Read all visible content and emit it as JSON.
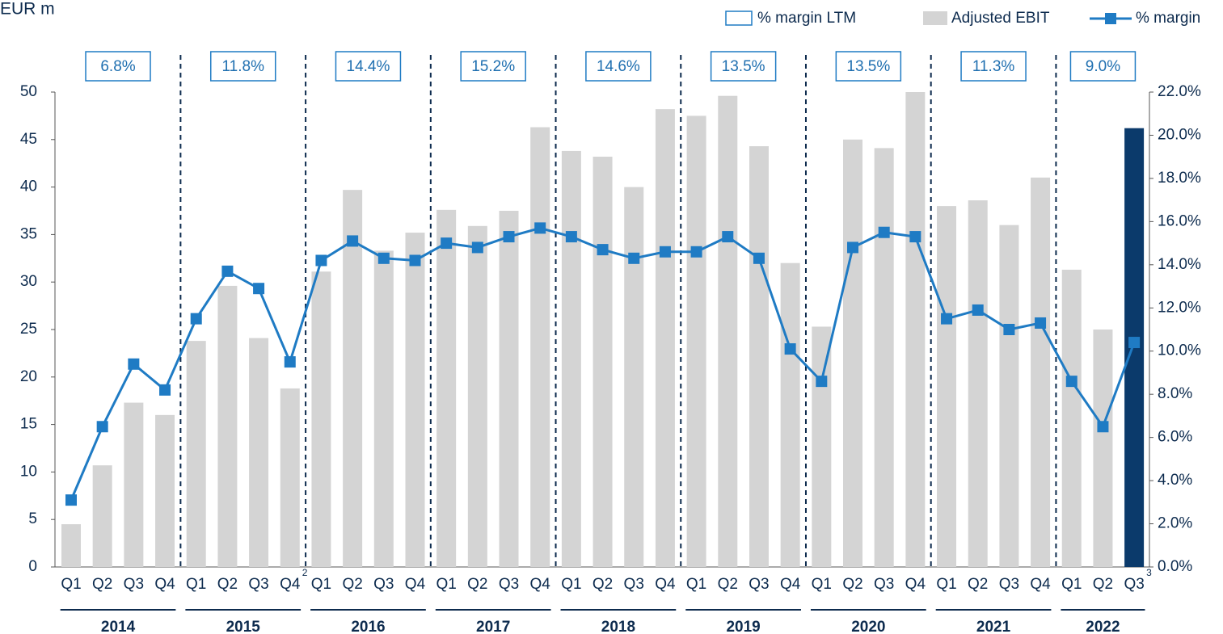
{
  "chart_data": {
    "type": "bar_line",
    "title": "EUR m",
    "categories": [
      "Q1",
      "Q2",
      "Q3",
      "Q4",
      "Q1",
      "Q2",
      "Q3",
      "Q4",
      "Q1",
      "Q2",
      "Q3",
      "Q4",
      "Q1",
      "Q2",
      "Q3",
      "Q4",
      "Q1",
      "Q2",
      "Q3",
      "Q4",
      "Q1",
      "Q2",
      "Q3",
      "Q4",
      "Q1",
      "Q2",
      "Q3",
      "Q4",
      "Q1",
      "Q2",
      "Q3",
      "Q4",
      "Q1",
      "Q2",
      "Q3"
    ],
    "superscripts": [
      {
        "index": 7,
        "text": "2"
      },
      {
        "index": 34,
        "text": "3"
      }
    ],
    "years": [
      "2014",
      "2015",
      "2016",
      "2017",
      "2018",
      "2019",
      "2020",
      "2021",
      "2022"
    ],
    "ltm": {
      "name": "% margin LTM",
      "color": "#1f7bc4",
      "values": [
        6.8,
        11.8,
        14.4,
        15.2,
        14.6,
        13.5,
        13.5,
        11.3,
        9.0
      ],
      "value_labels": [
        "6.8%",
        "11.8%",
        "14.4%",
        "15.2%",
        "14.6%",
        "13.5%",
        "13.5%",
        "11.3%",
        "9.0%"
      ]
    },
    "series": [
      {
        "name": "Adjusted EBIT",
        "color": "#d4d4d4",
        "highlight_index": 34,
        "highlight_color": "#0b3a6b",
        "values": [
          4.5,
          10.7,
          17.3,
          16.0,
          23.8,
          29.6,
          24.1,
          18.8,
          31.1,
          39.7,
          33.3,
          35.2,
          37.6,
          35.9,
          37.5,
          46.3,
          43.8,
          43.2,
          40.0,
          48.2,
          47.5,
          49.6,
          44.3,
          32.0,
          25.3,
          45.0,
          44.1,
          50.0,
          38.0,
          38.6,
          36.0,
          41.0,
          31.3,
          25.0,
          46.2
        ]
      },
      {
        "name": "% margin",
        "color": "#1f7bc4",
        "axis": "y2",
        "values": [
          3.1,
          6.5,
          9.4,
          8.2,
          11.5,
          13.7,
          12.9,
          9.5,
          14.2,
          15.1,
          14.3,
          14.2,
          15.0,
          14.8,
          15.3,
          15.7,
          15.3,
          14.7,
          14.3,
          14.6,
          14.6,
          15.3,
          14.3,
          10.1,
          8.6,
          14.8,
          15.5,
          15.3,
          11.5,
          11.9,
          11.0,
          11.3,
          8.6,
          6.5,
          10.4
        ]
      }
    ],
    "ylim": [
      0,
      50
    ],
    "yticks": [
      0,
      5,
      10,
      15,
      20,
      25,
      30,
      35,
      40,
      45,
      50
    ],
    "y2lim": [
      0,
      22
    ],
    "y2ticks": [
      {
        "value": 0,
        "label": "0.0%"
      },
      {
        "value": 2,
        "label": "2.0%"
      },
      {
        "value": 4,
        "label": "4.0%"
      },
      {
        "value": 6,
        "label": "6.0%"
      },
      {
        "value": 8,
        "label": "8.0%"
      },
      {
        "value": 10,
        "label": "10.0%"
      },
      {
        "value": 12,
        "label": "12.0%"
      },
      {
        "value": 14,
        "label": "14.0%"
      },
      {
        "value": 16,
        "label": "16.0%"
      },
      {
        "value": 18,
        "label": "18.0%"
      },
      {
        "value": 20,
        "label": "20.0%"
      },
      {
        "value": 22,
        "label": "22.0%"
      }
    ]
  }
}
